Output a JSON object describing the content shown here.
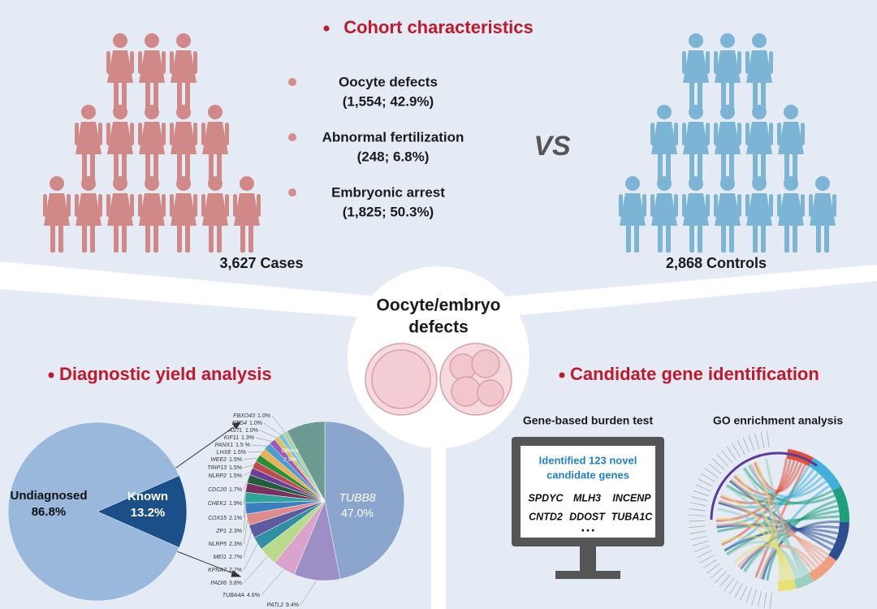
{
  "cohort": {
    "title": "Cohort characteristics",
    "items": [
      {
        "label": "Oocyte defects",
        "detail": "(1,554; 42.9%)"
      },
      {
        "label": "Abnormal fertilization",
        "detail": "(248; 6.8%)"
      },
      {
        "label": "Embryonic arrest",
        "detail": "(1,825; 50.3%)"
      }
    ],
    "vs": "VS",
    "cases": "3,627 Cases",
    "controls": "2,868 Controls"
  },
  "center": {
    "lines": [
      "Oocyte/embryo",
      "defects"
    ]
  },
  "diagnostic": {
    "title": "Diagnostic yield analysis"
  },
  "candidate": {
    "title": "Candidate gene identification",
    "burden_label": "Gene-based burden test",
    "go_label": "GO enrichment analysis",
    "screen": {
      "heading": [
        "Identified 123 novel",
        "candidate genes"
      ],
      "genes": [
        [
          "SPDYC",
          "MLH3",
          "INCENP"
        ],
        [
          "CNTD2",
          "DDOST",
          "TUBA1C"
        ]
      ],
      "ellipsis": "• • •"
    }
  },
  "chart_data": [
    {
      "type": "pie",
      "categories": [
        "Undiagnosed",
        "Known"
      ],
      "values": [
        86.8,
        13.2
      ],
      "value_labels": [
        "86.8%",
        "13.2%"
      ],
      "colors": [
        "#9ab7dc",
        "#1b4f87"
      ]
    },
    {
      "type": "pie",
      "categories": [
        "TUBB8",
        "PATL2",
        "TUBA4A",
        "PADI6",
        "KPNA7",
        "MEI1",
        "NLRP5",
        "ZP1",
        "COX15",
        "CHEK1",
        "CDC20",
        "NLRP2",
        "TRIP13",
        "WEE2",
        "LHX8",
        "PANX1",
        "KIF11",
        "ASTL",
        "BTG4",
        "FBXO43",
        "Others"
      ],
      "values": [
        47.0,
        9.4,
        4.6,
        3.8,
        2.7,
        2.7,
        2.3,
        2.3,
        2.1,
        1.9,
        1.7,
        1.5,
        1.5,
        1.5,
        1.5,
        1.5,
        1.3,
        1.0,
        1.0,
        1.0,
        7.9
      ],
      "value_labels": [
        "47.0%",
        "9.4%",
        "4.6%",
        "3.8%",
        "2.7%",
        "2.7%",
        "2.3%",
        "2.3%",
        "2.1%",
        "1.9%",
        "1.7%",
        "1.5%",
        "1.5%",
        "1.5%",
        "1.5%",
        "1.5 %",
        "1.3%",
        "1.0%",
        "1.0%",
        "1.0%",
        "7.9%"
      ],
      "colors": [
        "#8aa6cc",
        "#9d8fc6",
        "#d9a3cb",
        "#b9d98c",
        "#2f8fa3",
        "#5b5b9e",
        "#e08a8a",
        "#3a7fbf",
        "#2fa59a",
        "#7a2f5f",
        "#1f5f3a",
        "#6a3f9a",
        "#c04a4a",
        "#2a8f3a",
        "#e8b050",
        "#4a9fd0",
        "#9a5ac0",
        "#e0c050",
        "#7ac0e0",
        "#b0d0a0",
        "#6a9a90"
      ]
    }
  ]
}
